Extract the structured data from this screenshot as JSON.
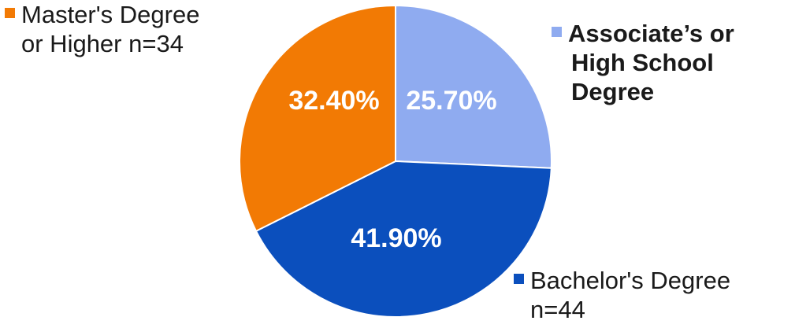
{
  "chart_data": {
    "type": "pie",
    "title": "",
    "slices": [
      {
        "label_lines": [
          "Associate’s or",
          "High School",
          "Degree"
        ],
        "value": 25.7,
        "display": "25.70%",
        "color": "#8fabf0"
      },
      {
        "label_lines": [
          "Bachelor's Degree",
          "n=44"
        ],
        "value": 41.9,
        "display": "41.90%",
        "color": "#0b4fbd"
      },
      {
        "label_lines": [
          "Master's Degree",
          "or Higher n=34"
        ],
        "value": 32.4,
        "display": "32.40%",
        "color": "#f27a04"
      }
    ],
    "start_angle_deg": 0,
    "direction": "clockwise",
    "slice_border_color": "#ffffff"
  }
}
